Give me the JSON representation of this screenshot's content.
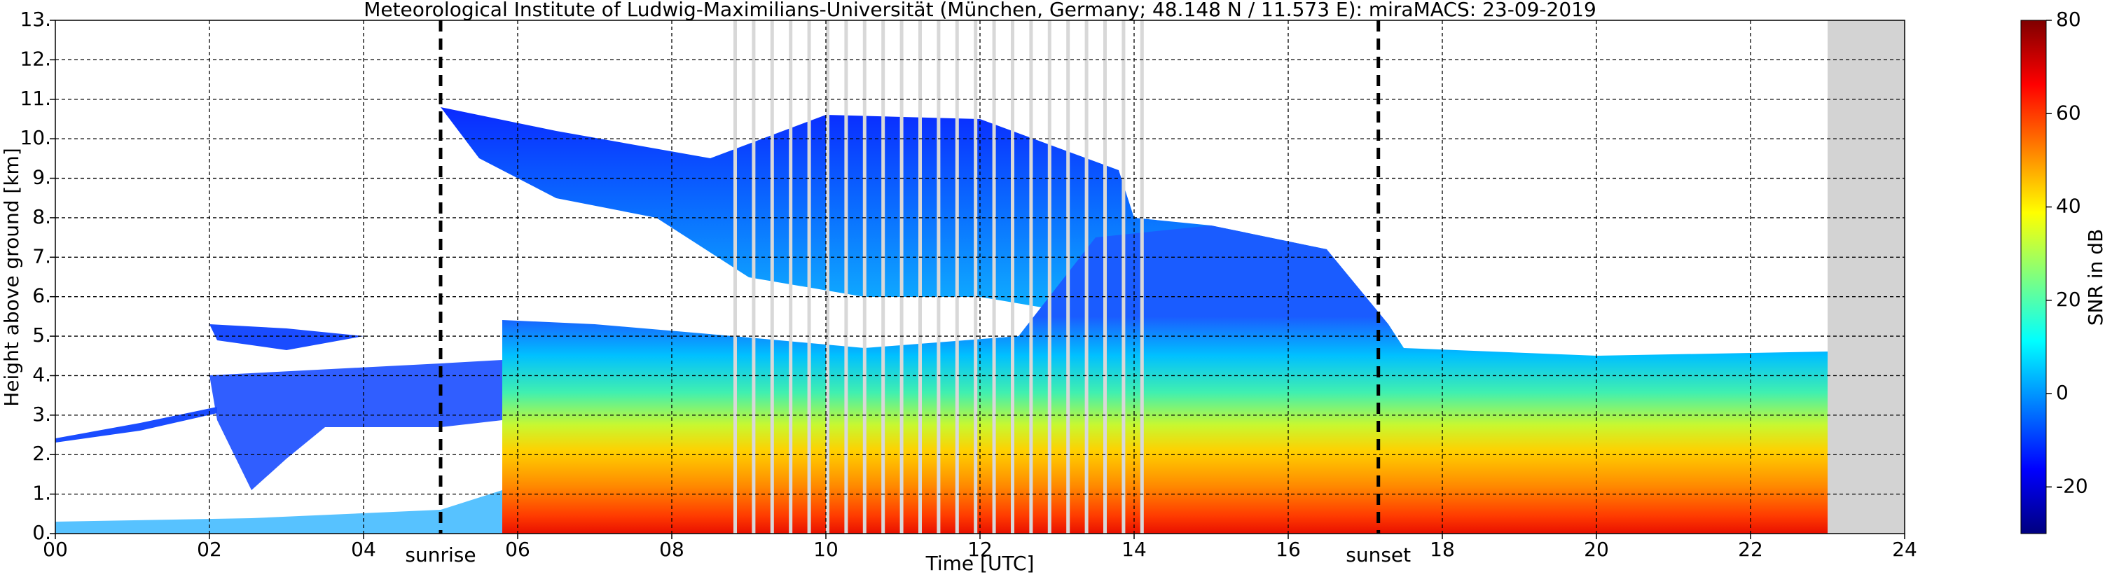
{
  "chart_data": {
    "type": "time-height",
    "title": "Meteorological Institute of Ludwig-Maximilians-Universität (München, Germany; 48.148 N / 11.573 E):    miraMACS: 23-09-2019",
    "x_label": "Time [UTC]",
    "y_label": "Height above ground [km]",
    "xlim": [
      0,
      24
    ],
    "ylim": [
      0,
      13
    ],
    "xticks": [
      {
        "value": 0,
        "label": "00"
      },
      {
        "value": 2,
        "label": "02"
      },
      {
        "value": 4,
        "label": "04"
      },
      {
        "value": 6,
        "label": "06"
      },
      {
        "value": 8,
        "label": "08"
      },
      10,
      12,
      14,
      16,
      18,
      20,
      22,
      24
    ],
    "yticks": [
      {
        "value": 0,
        "label": "0."
      },
      {
        "value": 1,
        "label": "1."
      },
      {
        "value": 2,
        "label": "2."
      },
      {
        "value": 3,
        "label": "3."
      },
      {
        "value": 4,
        "label": "4."
      },
      {
        "value": 5,
        "label": "5."
      },
      {
        "value": 6,
        "label": "6."
      },
      {
        "value": 7,
        "label": "7."
      },
      {
        "value": 8,
        "label": "8."
      },
      {
        "value": 9,
        "label": "9."
      },
      {
        "value": 10,
        "label": "10."
      },
      {
        "value": 11,
        "label": "11."
      },
      {
        "value": 12,
        "label": "12."
      },
      {
        "value": 13,
        "label": "13."
      }
    ],
    "grid": true,
    "annotations": [
      {
        "label": "sunrise",
        "x": 5.0
      },
      {
        "label": "sunset",
        "x": 17.17
      }
    ],
    "no_data_range": [
      23,
      24
    ],
    "colorbar": {
      "label": "SNR in dB",
      "lim": [
        -30,
        80
      ],
      "ticks": [
        -20,
        0,
        20,
        40,
        60,
        80
      ],
      "colormap": "jet"
    }
  }
}
